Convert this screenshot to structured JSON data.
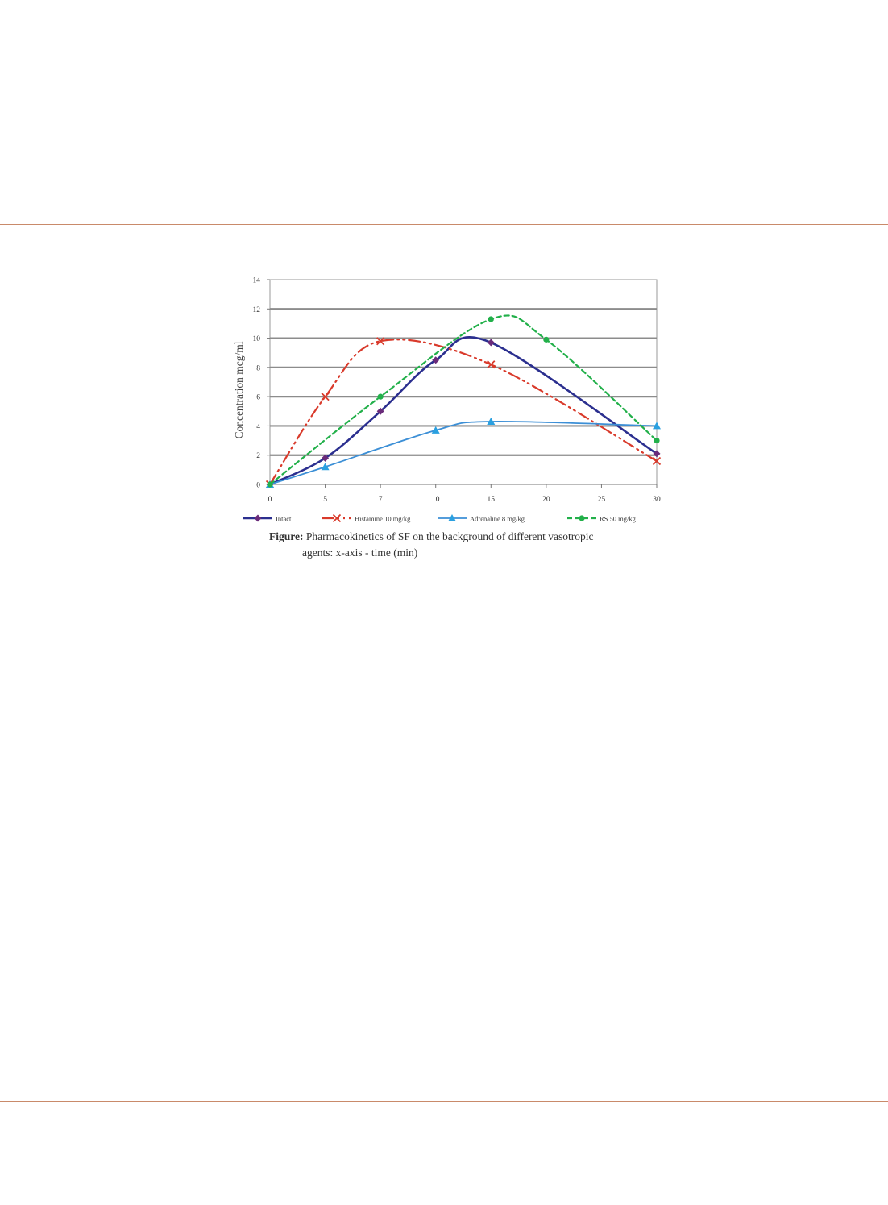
{
  "chart_data": {
    "type": "line",
    "categories": [
      "0",
      "5",
      "7",
      "10",
      "15",
      "20",
      "25",
      "30"
    ],
    "ylabel": "Concentration  mcg/ml",
    "xlabel": "",
    "ylim": [
      0,
      14
    ],
    "yticks": [
      0,
      2,
      4,
      6,
      8,
      10,
      12,
      14
    ],
    "grid": true,
    "legend_position": "bottom",
    "series": [
      {
        "name": "Intact",
        "values": [
          0,
          1.8,
          5.0,
          8.5,
          9.7,
          null,
          null,
          2.1
        ],
        "color": "#2b2f8f",
        "dash": "",
        "marker": "diamond",
        "marker_color": "#6a2b7a",
        "width": 2.6
      },
      {
        "name": "Histamine 10 mg/kg",
        "values": [
          0,
          6.0,
          9.8,
          null,
          8.2,
          null,
          null,
          1.6
        ],
        "color": "#d93a2b",
        "dash": "14,5,2,5,2,5",
        "marker": "x",
        "marker_color": "#d93a2b",
        "width": 2.2
      },
      {
        "name": "Adrenaline 8 mg/kg",
        "values": [
          0,
          1.2,
          null,
          3.7,
          4.3,
          null,
          null,
          4.0
        ],
        "color": "#3c8fd6",
        "dash": "",
        "marker": "triangle",
        "marker_color": "#2aa0e0",
        "width": 1.8
      },
      {
        "name": "RS 50 mg/kg",
        "values": [
          0,
          null,
          6.0,
          null,
          11.3,
          9.9,
          null,
          3.0
        ],
        "color": "#22b04a",
        "dash": "6,4",
        "marker": "circle",
        "marker_color": "#22b04a",
        "width": 2.2
      }
    ]
  },
  "caption": {
    "label": "Figure:",
    "line1": "Pharmacokinetics of SF on the background of different vasotropic",
    "line2": "agents:  x-axis - time (min)"
  }
}
